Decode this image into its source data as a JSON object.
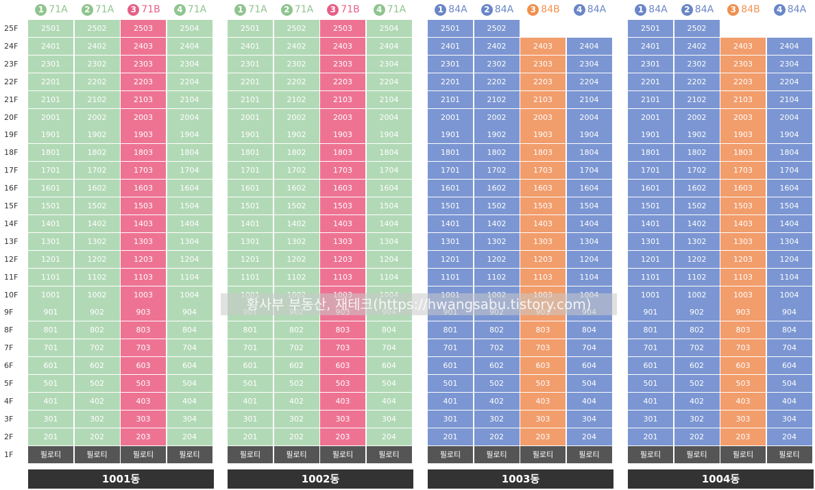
{
  "floors": [
    "25F",
    "24F",
    "23F",
    "22F",
    "21F",
    "20F",
    "19F",
    "18F",
    "17F",
    "16F",
    "15F",
    "14F",
    "13F",
    "12F",
    "11F",
    "10F",
    "9F",
    "8F",
    "7F",
    "6F",
    "5F",
    "4F",
    "3F",
    "2F",
    "1F"
  ],
  "piloti_label": "필로티",
  "colors": {
    "type_71A": "#b2d9b6",
    "type_71B": "#ee7393",
    "type_84A": "#7b96d2",
    "type_84B": "#f29d6c",
    "circle_71A": "#8fc48e",
    "circle_71B": "#e75f86",
    "circle_84A": "#6a86c8",
    "circle_84B": "#f0904e",
    "piloti": "#555555",
    "building_label": "#333333"
  },
  "buildings": [
    {
      "name": "1001동",
      "top_floor": 25,
      "lines": [
        {
          "num": "1",
          "type": "71A",
          "top_floor": 25
        },
        {
          "num": "2",
          "type": "71A",
          "top_floor": 25
        },
        {
          "num": "3",
          "type": "71B",
          "top_floor": 25
        },
        {
          "num": "4",
          "type": "71A",
          "top_floor": 25
        }
      ]
    },
    {
      "name": "1002동",
      "lines": [
        {
          "num": "1",
          "type": "71A",
          "top_floor": 25
        },
        {
          "num": "2",
          "type": "71A",
          "top_floor": 25
        },
        {
          "num": "3",
          "type": "71B",
          "top_floor": 25
        },
        {
          "num": "4",
          "type": "71A",
          "top_floor": 25
        }
      ]
    },
    {
      "name": "1003동",
      "lines": [
        {
          "num": "1",
          "type": "84A",
          "top_floor": 25
        },
        {
          "num": "2",
          "type": "84A",
          "top_floor": 25
        },
        {
          "num": "3",
          "type": "84B",
          "top_floor": 24
        },
        {
          "num": "4",
          "type": "84A",
          "top_floor": 24
        }
      ]
    },
    {
      "name": "1004동",
      "lines": [
        {
          "num": "1",
          "type": "84A",
          "top_floor": 25
        },
        {
          "num": "2",
          "type": "84A",
          "top_floor": 25
        },
        {
          "num": "3",
          "type": "84B",
          "top_floor": 24
        },
        {
          "num": "4",
          "type": "84A",
          "top_floor": 24
        }
      ]
    }
  ],
  "watermark": "황사부 부동산, 재테크(https://hwangsabu.tistory.com)"
}
